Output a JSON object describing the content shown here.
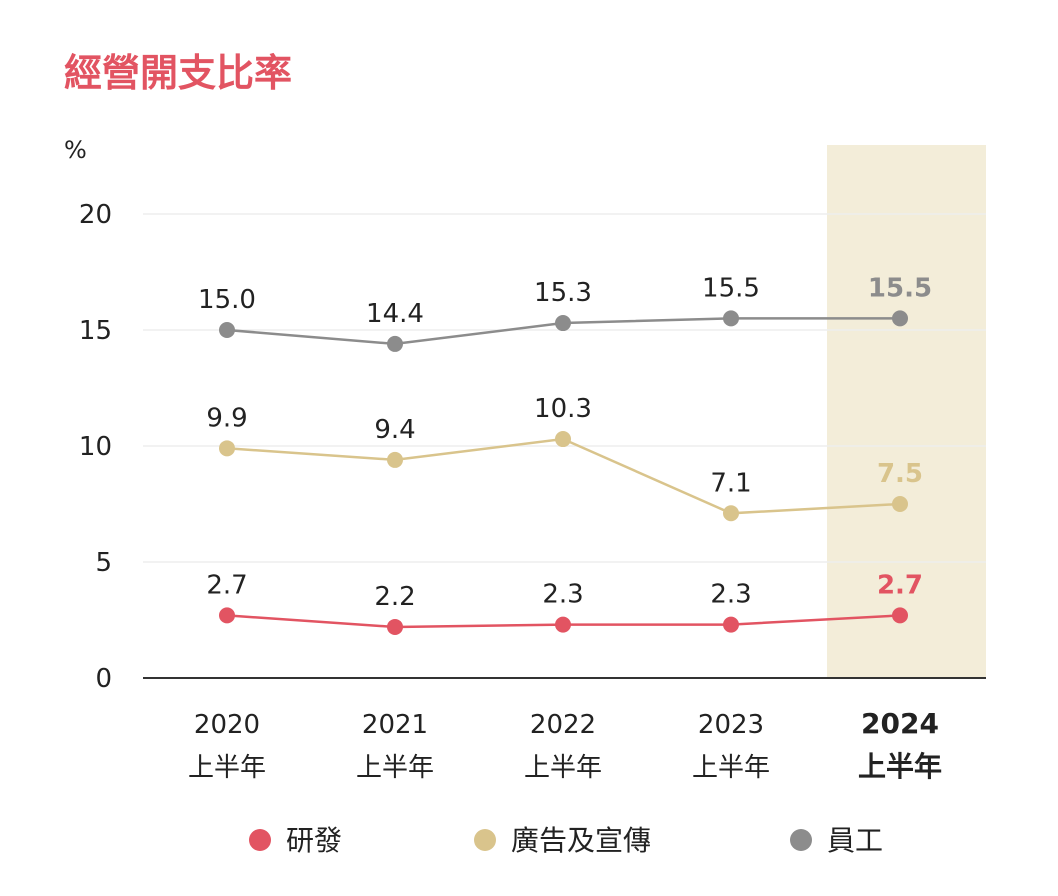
{
  "chart_data": {
    "type": "line",
    "title": "經營開支比率",
    "ylabel": "%",
    "ylim": [
      0,
      20
    ],
    "yticks": [
      "0",
      "5",
      "10",
      "15",
      "20"
    ],
    "categories": [
      {
        "year": "2020",
        "period": "上半年"
      },
      {
        "year": "2021",
        "period": "上半年"
      },
      {
        "year": "2022",
        "period": "上半年"
      },
      {
        "year": "2023",
        "period": "上半年"
      },
      {
        "year": "2024",
        "period": "上半年"
      }
    ],
    "highlight_index": 4,
    "series": [
      {
        "name": "員工",
        "color": "#8c8c8c",
        "values": [
          15.0,
          14.4,
          15.3,
          15.5,
          15.5
        ],
        "labels": [
          "15.0",
          "14.4",
          "15.3",
          "15.5",
          "15.5"
        ]
      },
      {
        "name": "廣告及宣傳",
        "color": "#d9c48c",
        "values": [
          9.9,
          9.4,
          10.3,
          7.1,
          7.5
        ],
        "labels": [
          "9.9",
          "9.4",
          "10.3",
          "7.1",
          "7.5"
        ]
      },
      {
        "name": "研發",
        "color": "#e25462",
        "values": [
          2.7,
          2.2,
          2.3,
          2.3,
          2.7
        ],
        "labels": [
          "2.7",
          "2.2",
          "2.3",
          "2.3",
          "2.7"
        ]
      }
    ],
    "legend_order": [
      "研發",
      "廣告及宣傳",
      "員工"
    ],
    "legend_position": "bottom",
    "grid": true,
    "colors": {
      "title": "#e25462",
      "highlight_band": "#f3edd9",
      "axis": "#333333",
      "grid": "#eeeeee"
    }
  }
}
